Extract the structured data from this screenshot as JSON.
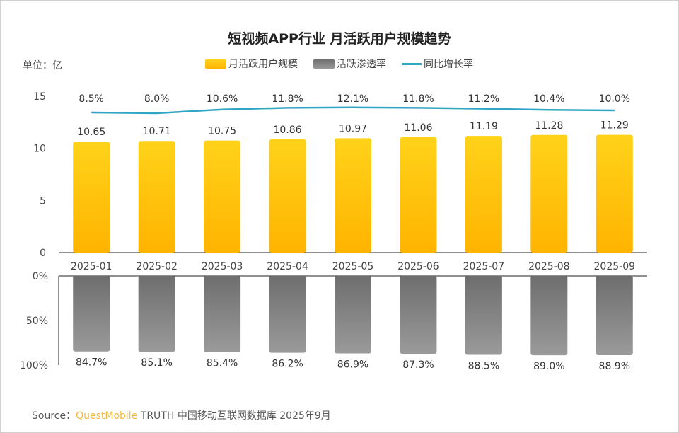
{
  "title": "短视频APP行业 月活跃用户规模趋势",
  "unit_label": "单位：亿",
  "legend": [
    {
      "label": "月活跃用户规模",
      "color": "#ffc000"
    },
    {
      "label": "活跃渗透率",
      "color": "#7f7f7f"
    },
    {
      "label": "同比增长率",
      "color": "#31a5c4"
    }
  ],
  "source": {
    "prefix": "Source：",
    "brand": "QuestMobile",
    "rest": " TRUTH 中国移动互联网数据库 2025年9月"
  },
  "chart_data": {
    "type": "bar",
    "categories": [
      "2025-01",
      "2025-02",
      "2025-03",
      "2025-04",
      "2025-05",
      "2025-06",
      "2025-07",
      "2025-08",
      "2025-09"
    ],
    "series": [
      {
        "name": "月活跃用户规模",
        "type": "bar",
        "values": [
          10.65,
          10.71,
          10.75,
          10.86,
          10.97,
          11.06,
          11.19,
          11.28,
          11.29
        ],
        "labels": [
          "10.65",
          "10.71",
          "10.75",
          "10.86",
          "10.97",
          "11.06",
          "11.19",
          "11.28",
          "11.29"
        ]
      },
      {
        "name": "活跃渗透率",
        "type": "bar",
        "values": [
          84.7,
          85.1,
          85.4,
          86.2,
          86.9,
          87.3,
          88.5,
          89.0,
          88.9
        ],
        "labels": [
          "84.7%",
          "85.1%",
          "85.4%",
          "86.2%",
          "86.9%",
          "87.3%",
          "88.5%",
          "89.0%",
          "88.9%"
        ]
      },
      {
        "name": "同比增长率",
        "type": "line",
        "values": [
          8.5,
          8.0,
          10.6,
          11.8,
          12.1,
          11.8,
          11.2,
          10.4,
          10.0
        ],
        "labels": [
          "8.5%",
          "8.0%",
          "10.6%",
          "11.8%",
          "12.1%",
          "11.8%",
          "11.2%",
          "10.4%",
          "10.0%"
        ]
      }
    ],
    "top_axis": {
      "ylim": [
        0,
        15
      ],
      "ticks": [
        "0",
        "5",
        "10",
        "15"
      ]
    },
    "bottom_axis": {
      "ylim": [
        0,
        100
      ],
      "reversed": true,
      "ticks": [
        "0%",
        "50%",
        "100%"
      ]
    }
  }
}
